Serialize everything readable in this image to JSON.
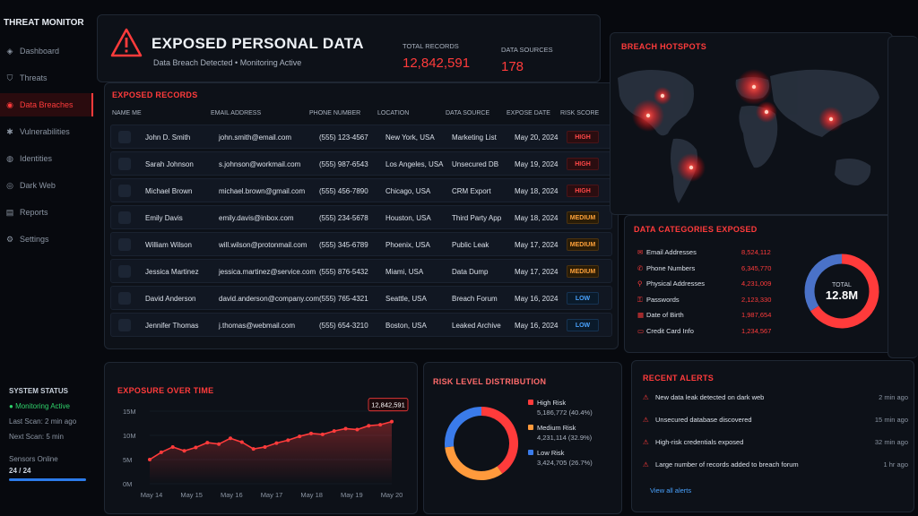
{
  "sidebar": {
    "brand": "THREAT MONITOR",
    "items": [
      {
        "label": "Dashboard",
        "icon": "dashboard-icon",
        "glyph": "◈"
      },
      {
        "label": "Threats",
        "icon": "shield-icon",
        "glyph": "⛉"
      },
      {
        "label": "Data Breaches",
        "icon": "database-icon",
        "glyph": "◉"
      },
      {
        "label": "Vulnerabilities",
        "icon": "bug-icon",
        "glyph": "✱"
      },
      {
        "label": "Identities",
        "icon": "user-icon",
        "glyph": "◍"
      },
      {
        "label": "Dark Web",
        "icon": "globe-icon",
        "glyph": "◎"
      },
      {
        "label": "Reports",
        "icon": "report-icon",
        "glyph": "▤"
      },
      {
        "label": "Settings",
        "icon": "gear-icon",
        "glyph": "⚙"
      }
    ],
    "active_index": 2
  },
  "system_status": {
    "title": "SYSTEM STATUS",
    "monitoring": "Monitoring Active",
    "last_scan": "Last Scan: 2 min ago",
    "next_scan": "Next Scan: 5 min",
    "sensors_label": "Sensors Online",
    "sensors_value": "24 / 24",
    "sensors_fraction": 1.0
  },
  "header": {
    "title": "EXPOSED PERSONAL DATA",
    "subtitle": "Data Breach Detected  •  Monitoring Active",
    "total_records_label": "TOTAL RECORDS",
    "total_records_value": "12,842,591",
    "data_sources_label": "DATA SOURCES",
    "data_sources_value": "178"
  },
  "records": {
    "title": "EXPOSED RECORDS",
    "columns": [
      "NAME ME",
      "EMAIL ADDRESS",
      "PHONE NUMBER",
      "LOCATION",
      "DATA SOURCE",
      "EXPOSE DATE",
      "RISK SCORE"
    ],
    "rows": [
      {
        "name": "John D. Smith",
        "email": "john.smith@email.com",
        "phone": "(555) 123-4567",
        "location": "New York, USA",
        "source": "Marketing List",
        "date": "May 20, 2024",
        "risk": "HIGH"
      },
      {
        "name": "Sarah Johnson",
        "email": "s.johnson@workmail.com",
        "phone": "(555) 987-6543",
        "location": "Los Angeles, USA",
        "source": "Unsecured DB",
        "date": "May 19, 2024",
        "risk": "HIGH"
      },
      {
        "name": "Michael Brown",
        "email": "michael.brown@gmail.com",
        "phone": "(555) 456-7890",
        "location": "Chicago, USA",
        "source": "CRM Export",
        "date": "May 18, 2024",
        "risk": "HIGH"
      },
      {
        "name": "Emily Davis",
        "email": "emily.davis@inbox.com",
        "phone": "(555) 234-5678",
        "location": "Houston, USA",
        "source": "Third Party App",
        "date": "May 18, 2024",
        "risk": "MEDIUM"
      },
      {
        "name": "William Wilson",
        "email": "will.wilson@protonmail.com",
        "phone": "(555) 345-6789",
        "location": "Phoenix, USA",
        "source": "Public Leak",
        "date": "May 17, 2024",
        "risk": "MEDIUM"
      },
      {
        "name": "Jessica Martinez",
        "email": "jessica.martinez@service.com",
        "phone": "(555) 876-5432",
        "location": "Miami, USA",
        "source": "Data Dump",
        "date": "May 17, 2024",
        "risk": "MEDIUM"
      },
      {
        "name": "David Anderson",
        "email": "david.anderson@company.com",
        "phone": "(555) 765-4321",
        "location": "Seattle, USA",
        "source": "Breach Forum",
        "date": "May 16, 2024",
        "risk": "LOW"
      },
      {
        "name": "Jennifer Thomas",
        "email": "j.thomas@webmail.com",
        "phone": "(555) 654-3210",
        "location": "Boston, USA",
        "source": "Leaked Archive",
        "date": "May 16, 2024",
        "risk": "LOW"
      }
    ]
  },
  "map": {
    "title": "BREACH HOTSPOTS",
    "hotspots": [
      {
        "region": "North America"
      },
      {
        "region": "Europe"
      },
      {
        "region": "Middle East"
      },
      {
        "region": "South America"
      },
      {
        "region": "Asia"
      },
      {
        "region": "Australia"
      }
    ]
  },
  "categories": {
    "title": "DATA CATEGORIES EXPOSED",
    "items": [
      {
        "label": "Email Addresses",
        "value": "8,524,112",
        "icon": "mail-icon",
        "glyph": "✉"
      },
      {
        "label": "Phone Numbers",
        "value": "6,345,770",
        "icon": "phone-icon",
        "glyph": "✆"
      },
      {
        "label": "Physical Addresses",
        "value": "4,231,009",
        "icon": "pin-icon",
        "glyph": "⚲"
      },
      {
        "label": "Passwords",
        "value": "2,123,330",
        "icon": "key-icon",
        "glyph": "⚿"
      },
      {
        "label": "Date of Birth",
        "value": "1,987,654",
        "icon": "calendar-icon",
        "glyph": "▦"
      },
      {
        "label": "Credit Card Info",
        "value": "1,234,567",
        "icon": "card-icon",
        "glyph": "▭"
      }
    ],
    "donut_label": "TOTAL",
    "donut_value": "12.8M"
  },
  "chart_data": [
    {
      "type": "line",
      "title": "EXPOSURE OVER TIME",
      "x": [
        "May 14",
        "May 15",
        "May 16",
        "May 17",
        "May 18",
        "May 19",
        "May 20"
      ],
      "ytick_labels": [
        "15M",
        "10M",
        "5M",
        "0M"
      ],
      "ylim": [
        0,
        15
      ],
      "points": [
        5,
        6.5,
        7.6,
        6.8,
        7.5,
        8.5,
        8.2,
        9.4,
        8.6,
        7.2,
        7.6,
        8.4,
        9.0,
        9.8,
        10.4,
        10.2,
        10.9,
        11.4,
        11.2,
        12.0,
        12.2,
        12.84
      ],
      "peak_label": "12,842,591",
      "color": "#ff3b3b"
    },
    {
      "type": "pie",
      "title": "RISK LEVEL DISTRIBUTION",
      "slices": [
        {
          "name": "High Risk",
          "value": 5186772,
          "display": "5,186,772 (40.4%)",
          "percent": 40.4,
          "color": "#ff3b3b"
        },
        {
          "name": "Medium Risk",
          "value": 4231114,
          "display": "4,231,114 (32.9%)",
          "percent": 32.9,
          "color": "#ff9a3c"
        },
        {
          "name": "Low Risk",
          "value": 3424705,
          "display": "3,424,705 (26.7%)",
          "percent": 26.7,
          "color": "#3a7bea"
        }
      ]
    },
    {
      "type": "pie",
      "title": "",
      "slices": [
        {
          "name": "Email Addresses",
          "percent": 66,
          "color": "#ff3b3b"
        },
        {
          "name": "Other",
          "percent": 34,
          "color": "#4a72c8"
        }
      ]
    }
  ],
  "alerts": {
    "title": "RECENT ALERTS",
    "items": [
      {
        "text": "New data leak detected on dark web",
        "time": "2 min ago"
      },
      {
        "text": "Unsecured database discovered",
        "time": "15 min ago"
      },
      {
        "text": "High-risk credentials exposed",
        "time": "32 min ago"
      },
      {
        "text": "Large number of records added to breach forum",
        "time": "1 hr ago"
      }
    ],
    "view_all": "View all alerts"
  }
}
